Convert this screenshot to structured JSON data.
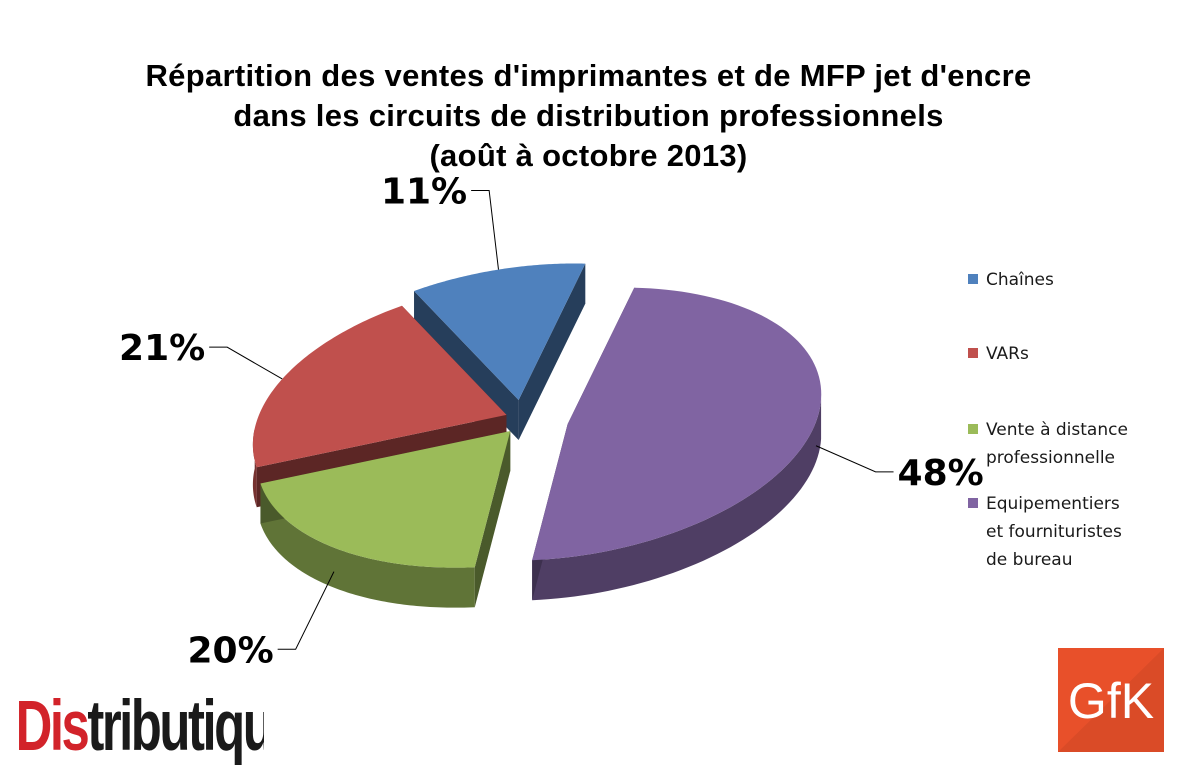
{
  "title": {
    "line1": "Répartition des ventes d'imprimantes et de MFP jet d'encre",
    "line2": "dans les circuits de distribution professionnels",
    "line3": "(août à octobre 2013)"
  },
  "chart_data": {
    "type": "pie",
    "style": "3d-exploded",
    "title": "Répartition des ventes d'imprimantes et de MFP jet d'encre dans les circuits de distribution professionnels (août à octobre 2013)",
    "unit": "%",
    "legend_position": "right",
    "slices": [
      {
        "name": "Chaînes",
        "value": 11,
        "label": "11%",
        "color": "#4f81bd"
      },
      {
        "name": "VARs",
        "value": 21,
        "label": "21%",
        "color": "#c0504d"
      },
      {
        "name": "Vente à distance professionnelle",
        "value": 20,
        "label": "20%",
        "color": "#9bbb59"
      },
      {
        "name": "Equipementiers et fournituristes de bureau",
        "value": 48,
        "label": "48%",
        "color": "#8064a2"
      }
    ],
    "legend": [
      {
        "lines": [
          "Chaînes"
        ],
        "color": "#4f81bd"
      },
      {
        "lines": [
          "VARs"
        ],
        "color": "#c0504d"
      },
      {
        "lines": [
          "Vente à distance",
          "professionnelle"
        ],
        "color": "#9bbb59"
      },
      {
        "lines": [
          "Equipementiers",
          "et fournituristes",
          "de bureau"
        ],
        "color": "#8064a2"
      }
    ]
  },
  "logos": {
    "distributique": {
      "text": "Distributique",
      "colors": [
        "#d2232a",
        "#1a1a1a"
      ]
    },
    "gfk": {
      "text": "GfK",
      "color": "#e8502a"
    }
  }
}
